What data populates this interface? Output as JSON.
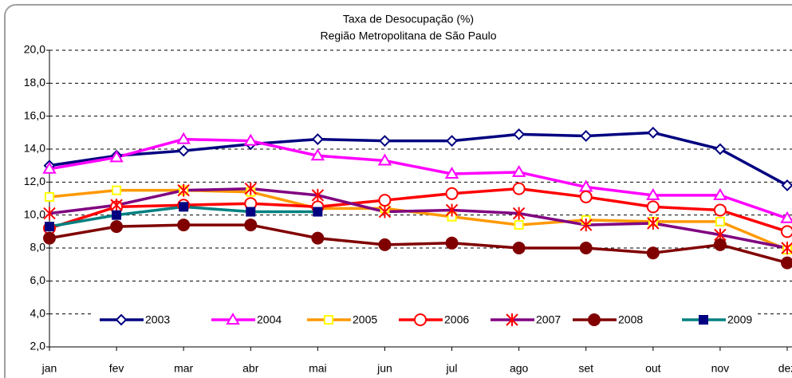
{
  "chart_data": {
    "type": "line",
    "title": "Taxa de Desocupação (%)",
    "subtitle": "Região Metropolitana de São Paulo",
    "categories": [
      "jan",
      "fev",
      "mar",
      "abr",
      "mai",
      "jun",
      "jul",
      "ago",
      "set",
      "out",
      "nov",
      "dez"
    ],
    "ylim": [
      2,
      20
    ],
    "yticks": [
      {
        "value": 2,
        "label": "2,0"
      },
      {
        "value": 4,
        "label": "4,0"
      },
      {
        "value": 6,
        "label": "6,0"
      },
      {
        "value": 8,
        "label": "8,0"
      },
      {
        "value": 10,
        "label": "10,0"
      },
      {
        "value": 12,
        "label": "12,0"
      },
      {
        "value": 14,
        "label": "14,0"
      },
      {
        "value": 16,
        "label": "16,0"
      },
      {
        "value": 18,
        "label": "18,0"
      },
      {
        "value": 20,
        "label": "20,0"
      }
    ],
    "grid": true,
    "legend": "bottom",
    "series": [
      {
        "name": "2003",
        "color": "#000080",
        "marker": "diamond",
        "marker_fill": "#ffffff",
        "marker_stroke": "#000080",
        "values": [
          13.0,
          13.6,
          13.9,
          14.3,
          14.6,
          14.5,
          14.5,
          14.9,
          14.8,
          15.0,
          14.0,
          11.8
        ]
      },
      {
        "name": "2004",
        "color": "#ff00ff",
        "marker": "triangle",
        "marker_fill": "#ffffff",
        "marker_stroke": "#ff00ff",
        "values": [
          12.8,
          13.5,
          14.6,
          14.5,
          13.6,
          13.3,
          12.5,
          12.6,
          11.7,
          11.2,
          11.2,
          9.8
        ]
      },
      {
        "name": "2005",
        "color": "#ff9900",
        "marker": "square",
        "marker_fill": "#ffffff",
        "marker_stroke": "#ffff00",
        "values": [
          11.1,
          11.5,
          11.5,
          11.4,
          10.4,
          10.4,
          9.9,
          9.4,
          9.7,
          9.6,
          9.6,
          7.9
        ]
      },
      {
        "name": "2006",
        "color": "#ff0000",
        "marker": "circle",
        "marker_fill": "#ffffff",
        "marker_stroke": "#ff0000",
        "values": [
          9.2,
          10.5,
          10.6,
          10.7,
          10.5,
          10.9,
          11.3,
          11.6,
          11.1,
          10.5,
          10.3,
          9.0
        ]
      },
      {
        "name": "2007",
        "color": "#800080",
        "marker": "asterisk",
        "marker_fill": "none",
        "marker_stroke": "#ff0000",
        "values": [
          10.1,
          10.6,
          11.5,
          11.6,
          11.2,
          10.2,
          10.3,
          10.1,
          9.4,
          9.5,
          8.8,
          8.0
        ]
      },
      {
        "name": "2008",
        "color": "#800000",
        "marker": "circle",
        "marker_fill": "#800000",
        "marker_stroke": "#800000",
        "values": [
          8.6,
          9.3,
          9.4,
          9.4,
          8.6,
          8.2,
          8.3,
          8.0,
          8.0,
          7.7,
          8.2,
          7.1
        ]
      },
      {
        "name": "2009",
        "color": "#008080",
        "marker": "square",
        "marker_fill": "#000080",
        "marker_stroke": "#000080",
        "values": [
          9.3,
          10.0,
          10.5,
          10.2,
          10.2,
          null,
          null,
          null,
          null,
          null,
          null,
          null
        ]
      }
    ]
  }
}
